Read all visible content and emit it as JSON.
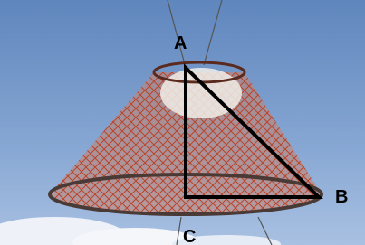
{
  "labels": {
    "a": "A",
    "b": "B",
    "c": "C"
  }
}
